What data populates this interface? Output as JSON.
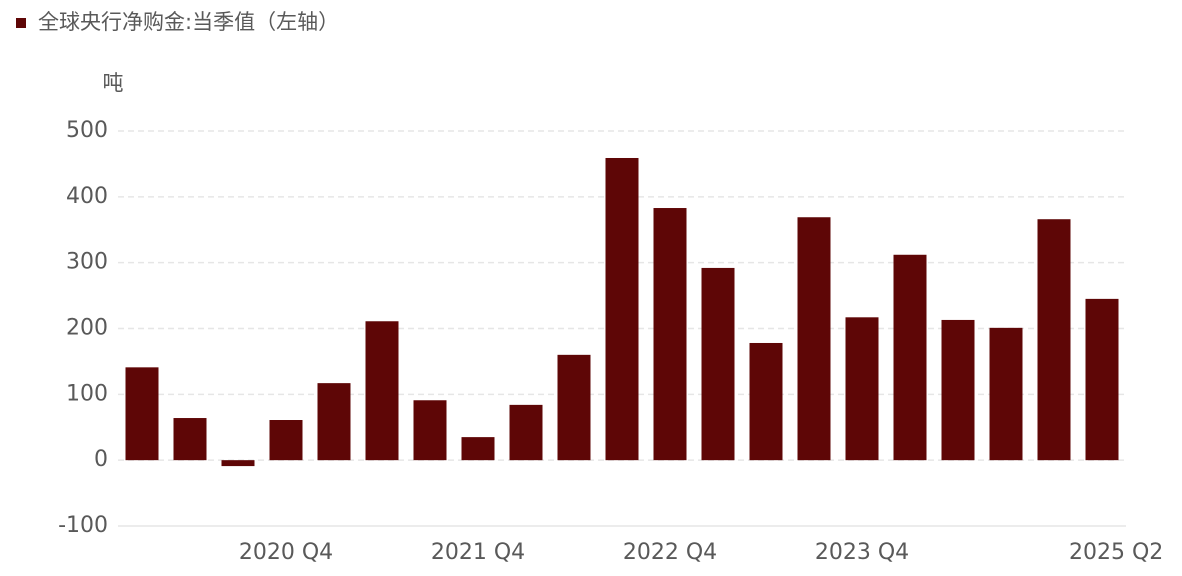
{
  "chart_data": {
    "type": "bar",
    "series": [
      {
        "name": "全球央行净购金:当季值（左轴）",
        "color": "#5e0606",
        "values": [
          141,
          64,
          -9,
          61,
          117,
          211,
          91,
          35,
          84,
          160,
          459,
          383,
          292,
          178,
          369,
          217,
          312,
          213,
          201,
          366,
          245
        ]
      }
    ],
    "categories": [
      null,
      null,
      null,
      "2020 Q4",
      null,
      null,
      null,
      "2021 Q4",
      null,
      null,
      null,
      "2022 Q4",
      null,
      null,
      null,
      "2023 Q4",
      null,
      null,
      null,
      null,
      "2025 Q2"
    ],
    "y_unit": "吨",
    "ylim": [
      -100,
      500
    ],
    "yticks": [
      -100,
      0,
      100,
      200,
      300,
      400,
      500
    ],
    "grid": true
  }
}
